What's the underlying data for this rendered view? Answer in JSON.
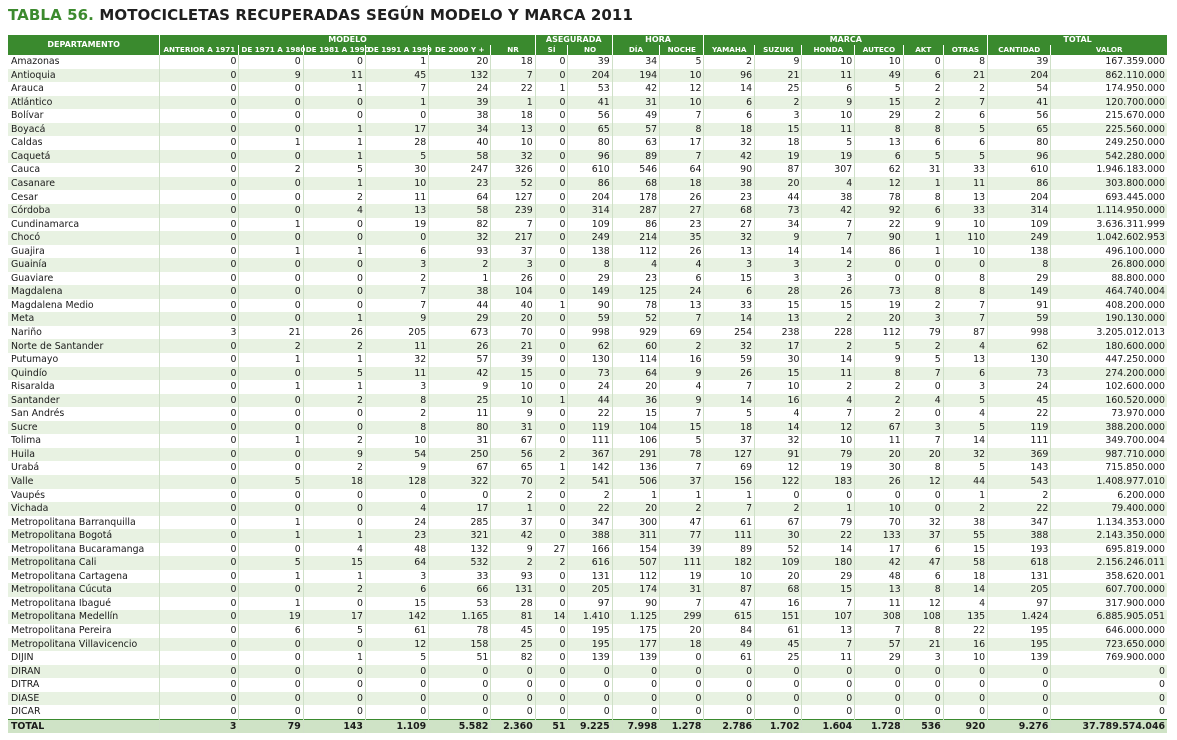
{
  "title": {
    "prefix": "TABLA 56.",
    "text": "MOTOCICLETAS RECUPERADAS SEGÚN MODELO Y MARCA 2011"
  },
  "header": {
    "departamento": "DEPARTAMENTO",
    "groups": {
      "modelo": "MODELO",
      "asegurada": "ASEGURADA",
      "hora": "HORA",
      "marca": "MARCA",
      "total": "TOTAL"
    },
    "columns": [
      "ANTERIOR A 1971",
      "DE 1971 A 1980",
      "DE 1981 A 1990",
      "DE 1991 A 1999",
      "DE 2000 Y +",
      "NR",
      "SÍ",
      "NO",
      "DÍA",
      "NOCHE",
      "YAMAHA",
      "SUZUKI",
      "HONDA",
      "AUTECO",
      "AKT",
      "OTRAS",
      "CANTIDAD",
      "VALOR"
    ]
  },
  "rows": [
    [
      "Amazonas",
      "0",
      "0",
      "0",
      "1",
      "20",
      "18",
      "0",
      "39",
      "34",
      "5",
      "2",
      "9",
      "10",
      "10",
      "0",
      "8",
      "39",
      "167.359.000"
    ],
    [
      "Antioquia",
      "0",
      "9",
      "11",
      "45",
      "132",
      "7",
      "0",
      "204",
      "194",
      "10",
      "96",
      "21",
      "11",
      "49",
      "6",
      "21",
      "204",
      "862.110.000"
    ],
    [
      "Arauca",
      "0",
      "0",
      "1",
      "7",
      "24",
      "22",
      "1",
      "53",
      "42",
      "12",
      "14",
      "25",
      "6",
      "5",
      "2",
      "2",
      "54",
      "174.950.000"
    ],
    [
      "Atlántico",
      "0",
      "0",
      "0",
      "1",
      "39",
      "1",
      "0",
      "41",
      "31",
      "10",
      "6",
      "2",
      "9",
      "15",
      "2",
      "7",
      "41",
      "120.700.000"
    ],
    [
      "Bolívar",
      "0",
      "0",
      "0",
      "0",
      "38",
      "18",
      "0",
      "56",
      "49",
      "7",
      "6",
      "3",
      "10",
      "29",
      "2",
      "6",
      "56",
      "215.670.000"
    ],
    [
      "Boyacá",
      "0",
      "0",
      "1",
      "17",
      "34",
      "13",
      "0",
      "65",
      "57",
      "8",
      "18",
      "15",
      "11",
      "8",
      "8",
      "5",
      "65",
      "225.560.000"
    ],
    [
      "Caldas",
      "0",
      "1",
      "1",
      "28",
      "40",
      "10",
      "0",
      "80",
      "63",
      "17",
      "32",
      "18",
      "5",
      "13",
      "6",
      "6",
      "80",
      "249.250.000"
    ],
    [
      "Caquetá",
      "0",
      "0",
      "1",
      "5",
      "58",
      "32",
      "0",
      "96",
      "89",
      "7",
      "42",
      "19",
      "19",
      "6",
      "5",
      "5",
      "96",
      "542.280.000"
    ],
    [
      "Cauca",
      "0",
      "2",
      "5",
      "30",
      "247",
      "326",
      "0",
      "610",
      "546",
      "64",
      "90",
      "87",
      "307",
      "62",
      "31",
      "33",
      "610",
      "1.946.183.000"
    ],
    [
      "Casanare",
      "0",
      "0",
      "1",
      "10",
      "23",
      "52",
      "0",
      "86",
      "68",
      "18",
      "38",
      "20",
      "4",
      "12",
      "1",
      "11",
      "86",
      "303.800.000"
    ],
    [
      "Cesar",
      "0",
      "0",
      "2",
      "11",
      "64",
      "127",
      "0",
      "204",
      "178",
      "26",
      "23",
      "44",
      "38",
      "78",
      "8",
      "13",
      "204",
      "693.445.000"
    ],
    [
      "Córdoba",
      "0",
      "0",
      "4",
      "13",
      "58",
      "239",
      "0",
      "314",
      "287",
      "27",
      "68",
      "73",
      "42",
      "92",
      "6",
      "33",
      "314",
      "1.114.950.000"
    ],
    [
      "Cundinamarca",
      "0",
      "1",
      "0",
      "19",
      "82",
      "7",
      "0",
      "109",
      "86",
      "23",
      "27",
      "34",
      "7",
      "22",
      "9",
      "10",
      "109",
      "3.636.311.999"
    ],
    [
      "Chocó",
      "0",
      "0",
      "0",
      "0",
      "32",
      "217",
      "0",
      "249",
      "214",
      "35",
      "32",
      "9",
      "7",
      "90",
      "1",
      "110",
      "249",
      "1.042.602.953"
    ],
    [
      "Guajira",
      "0",
      "1",
      "1",
      "6",
      "93",
      "37",
      "0",
      "138",
      "112",
      "26",
      "13",
      "14",
      "14",
      "86",
      "1",
      "10",
      "138",
      "496.100.000"
    ],
    [
      "Guainía",
      "0",
      "0",
      "0",
      "3",
      "2",
      "3",
      "0",
      "8",
      "4",
      "4",
      "3",
      "3",
      "2",
      "0",
      "0",
      "0",
      "8",
      "26.800.000"
    ],
    [
      "Guaviare",
      "0",
      "0",
      "0",
      "2",
      "1",
      "26",
      "0",
      "29",
      "23",
      "6",
      "15",
      "3",
      "3",
      "0",
      "0",
      "8",
      "29",
      "88.800.000"
    ],
    [
      "Magdalena",
      "0",
      "0",
      "0",
      "7",
      "38",
      "104",
      "0",
      "149",
      "125",
      "24",
      "6",
      "28",
      "26",
      "73",
      "8",
      "8",
      "149",
      "464.740.004"
    ],
    [
      "Magdalena Medio",
      "0",
      "0",
      "0",
      "7",
      "44",
      "40",
      "1",
      "90",
      "78",
      "13",
      "33",
      "15",
      "15",
      "19",
      "2",
      "7",
      "91",
      "408.200.000"
    ],
    [
      "Meta",
      "0",
      "0",
      "1",
      "9",
      "29",
      "20",
      "0",
      "59",
      "52",
      "7",
      "14",
      "13",
      "2",
      "20",
      "3",
      "7",
      "59",
      "190.130.000"
    ],
    [
      "Nariño",
      "3",
      "21",
      "26",
      "205",
      "673",
      "70",
      "0",
      "998",
      "929",
      "69",
      "254",
      "238",
      "228",
      "112",
      "79",
      "87",
      "998",
      "3.205.012.013"
    ],
    [
      "Norte de Santander",
      "0",
      "2",
      "2",
      "11",
      "26",
      "21",
      "0",
      "62",
      "60",
      "2",
      "32",
      "17",
      "2",
      "5",
      "2",
      "4",
      "62",
      "180.600.000"
    ],
    [
      "Putumayo",
      "0",
      "1",
      "1",
      "32",
      "57",
      "39",
      "0",
      "130",
      "114",
      "16",
      "59",
      "30",
      "14",
      "9",
      "5",
      "13",
      "130",
      "447.250.000"
    ],
    [
      "Quindío",
      "0",
      "0",
      "5",
      "11",
      "42",
      "15",
      "0",
      "73",
      "64",
      "9",
      "26",
      "15",
      "11",
      "8",
      "7",
      "6",
      "73",
      "274.200.000"
    ],
    [
      "Risaralda",
      "0",
      "1",
      "1",
      "3",
      "9",
      "10",
      "0",
      "24",
      "20",
      "4",
      "7",
      "10",
      "2",
      "2",
      "0",
      "3",
      "24",
      "102.600.000"
    ],
    [
      "Santander",
      "0",
      "0",
      "2",
      "8",
      "25",
      "10",
      "1",
      "44",
      "36",
      "9",
      "14",
      "16",
      "4",
      "2",
      "4",
      "5",
      "45",
      "160.520.000"
    ],
    [
      "San Andrés",
      "0",
      "0",
      "0",
      "2",
      "11",
      "9",
      "0",
      "22",
      "15",
      "7",
      "5",
      "4",
      "7",
      "2",
      "0",
      "4",
      "22",
      "73.970.000"
    ],
    [
      "Sucre",
      "0",
      "0",
      "0",
      "8",
      "80",
      "31",
      "0",
      "119",
      "104",
      "15",
      "18",
      "14",
      "12",
      "67",
      "3",
      "5",
      "119",
      "388.200.000"
    ],
    [
      "Tolima",
      "0",
      "1",
      "2",
      "10",
      "31",
      "67",
      "0",
      "111",
      "106",
      "5",
      "37",
      "32",
      "10",
      "11",
      "7",
      "14",
      "111",
      "349.700.004"
    ],
    [
      "Huila",
      "0",
      "0",
      "9",
      "54",
      "250",
      "56",
      "2",
      "367",
      "291",
      "78",
      "127",
      "91",
      "79",
      "20",
      "20",
      "32",
      "369",
      "987.710.000"
    ],
    [
      "Urabá",
      "0",
      "0",
      "2",
      "9",
      "67",
      "65",
      "1",
      "142",
      "136",
      "7",
      "69",
      "12",
      "19",
      "30",
      "8",
      "5",
      "143",
      "715.850.000"
    ],
    [
      "Valle",
      "0",
      "5",
      "18",
      "128",
      "322",
      "70",
      "2",
      "541",
      "506",
      "37",
      "156",
      "122",
      "183",
      "26",
      "12",
      "44",
      "543",
      "1.408.977.010"
    ],
    [
      "Vaupés",
      "0",
      "0",
      "0",
      "0",
      "0",
      "2",
      "0",
      "2",
      "1",
      "1",
      "1",
      "0",
      "0",
      "0",
      "0",
      "1",
      "2",
      "6.200.000"
    ],
    [
      "Vichada",
      "0",
      "0",
      "0",
      "4",
      "17",
      "1",
      "0",
      "22",
      "20",
      "2",
      "7",
      "2",
      "1",
      "10",
      "0",
      "2",
      "22",
      "79.400.000"
    ],
    [
      "Metropolitana Barranquilla",
      "0",
      "1",
      "0",
      "24",
      "285",
      "37",
      "0",
      "347",
      "300",
      "47",
      "61",
      "67",
      "79",
      "70",
      "32",
      "38",
      "347",
      "1.134.353.000"
    ],
    [
      "Metropolitana Bogotá",
      "0",
      "1",
      "1",
      "23",
      "321",
      "42",
      "0",
      "388",
      "311",
      "77",
      "111",
      "30",
      "22",
      "133",
      "37",
      "55",
      "388",
      "2.143.350.000"
    ],
    [
      "Metropolitana Bucaramanga",
      "0",
      "0",
      "4",
      "48",
      "132",
      "9",
      "27",
      "166",
      "154",
      "39",
      "89",
      "52",
      "14",
      "17",
      "6",
      "15",
      "193",
      "695.819.000"
    ],
    [
      "Metropolitana Cali",
      "0",
      "5",
      "15",
      "64",
      "532",
      "2",
      "2",
      "616",
      "507",
      "111",
      "182",
      "109",
      "180",
      "42",
      "47",
      "58",
      "618",
      "2.156.246.011"
    ],
    [
      "Metropolitana Cartagena",
      "0",
      "1",
      "1",
      "3",
      "33",
      "93",
      "0",
      "131",
      "112",
      "19",
      "10",
      "20",
      "29",
      "48",
      "6",
      "18",
      "131",
      "358.620.001"
    ],
    [
      "Metropolitana Cúcuta",
      "0",
      "0",
      "2",
      "6",
      "66",
      "131",
      "0",
      "205",
      "174",
      "31",
      "87",
      "68",
      "15",
      "13",
      "8",
      "14",
      "205",
      "607.700.000"
    ],
    [
      "Metropolitana Ibagué",
      "0",
      "1",
      "0",
      "15",
      "53",
      "28",
      "0",
      "97",
      "90",
      "7",
      "47",
      "16",
      "7",
      "11",
      "12",
      "4",
      "97",
      "317.900.000"
    ],
    [
      "Metropolitana Medellín",
      "0",
      "19",
      "17",
      "142",
      "1.165",
      "81",
      "14",
      "1.410",
      "1.125",
      "299",
      "615",
      "151",
      "107",
      "308",
      "108",
      "135",
      "1.424",
      "6.885.905.051"
    ],
    [
      "Metropolitana Pereira",
      "0",
      "6",
      "5",
      "61",
      "78",
      "45",
      "0",
      "195",
      "175",
      "20",
      "84",
      "61",
      "13",
      "7",
      "8",
      "22",
      "195",
      "646.000.000"
    ],
    [
      "Metropolitana Villavicencio",
      "0",
      "0",
      "0",
      "12",
      "158",
      "25",
      "0",
      "195",
      "177",
      "18",
      "49",
      "45",
      "7",
      "57",
      "21",
      "16",
      "195",
      "723.650.000"
    ],
    [
      "DIJIN",
      "0",
      "0",
      "1",
      "5",
      "51",
      "82",
      "0",
      "139",
      "139",
      "0",
      "61",
      "25",
      "11",
      "29",
      "3",
      "10",
      "139",
      "769.900.000"
    ],
    [
      "DIRAN",
      "0",
      "0",
      "0",
      "0",
      "0",
      "0",
      "0",
      "0",
      "0",
      "0",
      "0",
      "0",
      "0",
      "0",
      "0",
      "0",
      "0",
      "0"
    ],
    [
      "DITRA",
      "0",
      "0",
      "0",
      "0",
      "0",
      "0",
      "0",
      "0",
      "0",
      "0",
      "0",
      "0",
      "0",
      "0",
      "0",
      "0",
      "0",
      "0"
    ],
    [
      "DIASE",
      "0",
      "0",
      "0",
      "0",
      "0",
      "0",
      "0",
      "0",
      "0",
      "0",
      "0",
      "0",
      "0",
      "0",
      "0",
      "0",
      "0",
      "0"
    ],
    [
      "DICAR",
      "0",
      "0",
      "0",
      "0",
      "0",
      "0",
      "0",
      "0",
      "0",
      "0",
      "0",
      "0",
      "0",
      "0",
      "0",
      "0",
      "0",
      "0"
    ]
  ],
  "total": [
    "TOTAL",
    "3",
    "79",
    "143",
    "1.109",
    "5.582",
    "2.360",
    "51",
    "9.225",
    "7.998",
    "1.278",
    "2.786",
    "1.702",
    "1.604",
    "1.728",
    "536",
    "920",
    "9.276",
    "37.789.574.046"
  ]
}
